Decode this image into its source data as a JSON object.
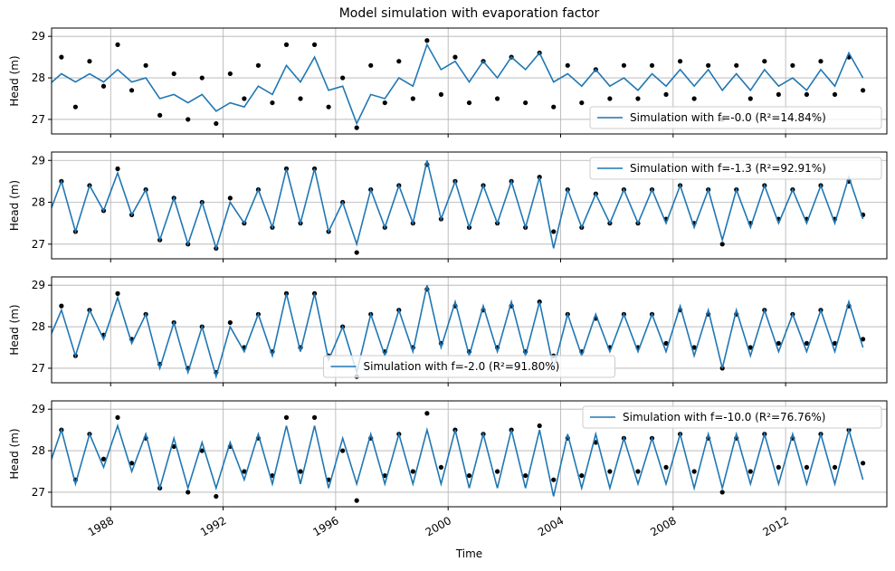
{
  "chart_data": [
    {
      "type": "line",
      "title": "Model simulation with evaporation factor",
      "ylabel": "Head (m)",
      "legend": "lower right",
      "grid": true,
      "xlim": [
        1985.9,
        2015.6
      ],
      "ylim": [
        26.65,
        29.2
      ],
      "yticks": [
        27,
        28,
        29
      ],
      "x": [
        1985.75,
        1986.25,
        1986.75,
        1987.25,
        1987.75,
        1988.25,
        1988.75,
        1989.25,
        1989.75,
        1990.25,
        1990.75,
        1991.25,
        1991.75,
        1992.25,
        1992.75,
        1993.25,
        1993.75,
        1994.25,
        1994.75,
        1995.25,
        1995.75,
        1996.25,
        1996.75,
        1997.25,
        1997.75,
        1998.25,
        1998.75,
        1999.25,
        1999.75,
        2000.25,
        2000.75,
        2001.25,
        2001.75,
        2002.25,
        2002.75,
        2003.25,
        2003.75,
        2004.25,
        2004.75,
        2005.25,
        2005.75,
        2006.25,
        2006.75,
        2007.25,
        2007.75,
        2008.25,
        2008.75,
        2009.25,
        2009.75,
        2010.25,
        2010.75,
        2011.25,
        2011.75,
        2012.25,
        2012.75,
        2013.25,
        2013.75,
        2014.25,
        2014.75
      ],
      "observations": {
        "color": "#000000",
        "values": [
          27.6,
          28.5,
          27.3,
          28.4,
          27.8,
          28.8,
          27.7,
          28.3,
          27.1,
          28.1,
          27.0,
          28.0,
          26.9,
          28.1,
          27.5,
          28.3,
          27.4,
          28.8,
          27.5,
          28.8,
          27.3,
          28.0,
          26.8,
          28.3,
          27.4,
          28.4,
          27.5,
          28.9,
          27.6,
          28.5,
          27.4,
          28.4,
          27.5,
          28.5,
          27.4,
          28.6,
          27.3,
          28.3,
          27.4,
          28.2,
          27.5,
          28.3,
          27.5,
          28.3,
          27.6,
          28.4,
          27.5,
          28.3,
          27.0,
          28.3,
          27.5,
          28.4,
          27.6,
          28.3,
          27.6,
          28.4,
          27.6,
          28.5,
          27.7
        ]
      },
      "series": [
        {
          "name": "Simulation with f=-0.0 (R²=14.84%)",
          "color": "#1f77b4",
          "values": [
            27.8,
            28.1,
            27.9,
            28.1,
            27.9,
            28.2,
            27.9,
            28.0,
            27.5,
            27.6,
            27.4,
            27.6,
            27.2,
            27.4,
            27.3,
            27.8,
            27.6,
            28.3,
            27.9,
            28.5,
            27.7,
            27.8,
            26.9,
            27.6,
            27.5,
            28.0,
            27.8,
            28.8,
            28.2,
            28.4,
            27.9,
            28.4,
            28.0,
            28.5,
            28.2,
            28.6,
            27.9,
            28.1,
            27.8,
            28.2,
            27.8,
            28.0,
            27.7,
            28.1,
            27.8,
            28.2,
            27.8,
            28.2,
            27.7,
            28.1,
            27.7,
            28.2,
            27.8,
            28.0,
            27.7,
            28.2,
            27.8,
            28.6,
            28.0
          ]
        }
      ]
    },
    {
      "type": "line",
      "ylabel": "Head (m)",
      "legend": "upper right",
      "grid": true,
      "xlim": [
        1985.9,
        2015.6
      ],
      "ylim": [
        26.65,
        29.2
      ],
      "yticks": [
        27,
        28,
        29
      ],
      "x": [
        1985.75,
        1986.25,
        1986.75,
        1987.25,
        1987.75,
        1988.25,
        1988.75,
        1989.25,
        1989.75,
        1990.25,
        1990.75,
        1991.25,
        1991.75,
        1992.25,
        1992.75,
        1993.25,
        1993.75,
        1994.25,
        1994.75,
        1995.25,
        1995.75,
        1996.25,
        1996.75,
        1997.25,
        1997.75,
        1998.25,
        1998.75,
        1999.25,
        1999.75,
        2000.25,
        2000.75,
        2001.25,
        2001.75,
        2002.25,
        2002.75,
        2003.25,
        2003.75,
        2004.25,
        2004.75,
        2005.25,
        2005.75,
        2006.25,
        2006.75,
        2007.25,
        2007.75,
        2008.25,
        2008.75,
        2009.25,
        2009.75,
        2010.25,
        2010.75,
        2011.25,
        2011.75,
        2012.25,
        2012.75,
        2013.25,
        2013.75,
        2014.25,
        2014.75
      ],
      "observations": {
        "color": "#000000",
        "values": [
          27.6,
          28.5,
          27.3,
          28.4,
          27.8,
          28.8,
          27.7,
          28.3,
          27.1,
          28.1,
          27.0,
          28.0,
          26.9,
          28.1,
          27.5,
          28.3,
          27.4,
          28.8,
          27.5,
          28.8,
          27.3,
          28.0,
          26.8,
          28.3,
          27.4,
          28.4,
          27.5,
          28.9,
          27.6,
          28.5,
          27.4,
          28.4,
          27.5,
          28.5,
          27.4,
          28.6,
          27.3,
          28.3,
          27.4,
          28.2,
          27.5,
          28.3,
          27.5,
          28.3,
          27.6,
          28.4,
          27.5,
          28.3,
          27.0,
          28.3,
          27.5,
          28.4,
          27.6,
          28.3,
          27.6,
          28.4,
          27.6,
          28.5,
          27.7
        ]
      },
      "series": [
        {
          "name": "Simulation with f=-1.3 (R²=92.91%)",
          "color": "#1f77b4",
          "values": [
            27.6,
            28.5,
            27.3,
            28.4,
            27.8,
            28.7,
            27.7,
            28.3,
            27.1,
            28.1,
            27.0,
            28.0,
            26.9,
            28.0,
            27.5,
            28.3,
            27.4,
            28.8,
            27.5,
            28.8,
            27.3,
            28.0,
            27.0,
            28.3,
            27.4,
            28.4,
            27.5,
            29.0,
            27.6,
            28.5,
            27.4,
            28.4,
            27.5,
            28.5,
            27.4,
            28.6,
            26.9,
            28.3,
            27.4,
            28.2,
            27.5,
            28.3,
            27.5,
            28.3,
            27.5,
            28.4,
            27.4,
            28.3,
            27.1,
            28.3,
            27.4,
            28.4,
            27.5,
            28.3,
            27.5,
            28.4,
            27.5,
            28.6,
            27.6
          ]
        }
      ]
    },
    {
      "type": "line",
      "ylabel": "Head (m)",
      "legend": "lower center",
      "grid": true,
      "xlim": [
        1985.9,
        2015.6
      ],
      "ylim": [
        26.65,
        29.2
      ],
      "yticks": [
        27,
        28,
        29
      ],
      "x": [
        1985.75,
        1986.25,
        1986.75,
        1987.25,
        1987.75,
        1988.25,
        1988.75,
        1989.25,
        1989.75,
        1990.25,
        1990.75,
        1991.25,
        1991.75,
        1992.25,
        1992.75,
        1993.25,
        1993.75,
        1994.25,
        1994.75,
        1995.25,
        1995.75,
        1996.25,
        1996.75,
        1997.25,
        1997.75,
        1998.25,
        1998.75,
        1999.25,
        1999.75,
        2000.25,
        2000.75,
        2001.25,
        2001.75,
        2002.25,
        2002.75,
        2003.25,
        2003.75,
        2004.25,
        2004.75,
        2005.25,
        2005.75,
        2006.25,
        2006.75,
        2007.25,
        2007.75,
        2008.25,
        2008.75,
        2009.25,
        2009.75,
        2010.25,
        2010.75,
        2011.25,
        2011.75,
        2012.25,
        2012.75,
        2013.25,
        2013.75,
        2014.25,
        2014.75
      ],
      "observations": {
        "color": "#000000",
        "values": [
          27.6,
          28.5,
          27.3,
          28.4,
          27.8,
          28.8,
          27.7,
          28.3,
          27.1,
          28.1,
          27.0,
          28.0,
          26.9,
          28.1,
          27.5,
          28.3,
          27.4,
          28.8,
          27.5,
          28.8,
          27.3,
          28.0,
          26.8,
          28.3,
          27.4,
          28.4,
          27.5,
          28.9,
          27.6,
          28.5,
          27.4,
          28.4,
          27.5,
          28.5,
          27.4,
          28.6,
          27.3,
          28.3,
          27.4,
          28.2,
          27.5,
          28.3,
          27.5,
          28.3,
          27.6,
          28.4,
          27.5,
          28.3,
          27.0,
          28.3,
          27.5,
          28.4,
          27.6,
          28.3,
          27.6,
          28.4,
          27.6,
          28.5,
          27.7
        ]
      },
      "series": [
        {
          "name": "Simulation with f=-2.0 (R²=91.80%)",
          "color": "#1f77b4",
          "values": [
            27.6,
            28.4,
            27.3,
            28.4,
            27.7,
            28.7,
            27.6,
            28.3,
            27.0,
            28.1,
            26.9,
            28.0,
            26.8,
            28.0,
            27.4,
            28.3,
            27.3,
            28.8,
            27.4,
            28.8,
            27.2,
            28.0,
            26.9,
            28.3,
            27.3,
            28.4,
            27.4,
            29.0,
            27.5,
            28.6,
            27.3,
            28.5,
            27.4,
            28.6,
            27.3,
            28.6,
            27.0,
            28.3,
            27.3,
            28.3,
            27.4,
            28.3,
            27.4,
            28.3,
            27.4,
            28.5,
            27.3,
            28.4,
            27.0,
            28.4,
            27.3,
            28.4,
            27.4,
            28.3,
            27.4,
            28.4,
            27.4,
            28.6,
            27.5
          ]
        }
      ]
    },
    {
      "type": "line",
      "ylabel": "Head (m)",
      "xlabel": "Time",
      "legend": "upper right",
      "grid": true,
      "xlim": [
        1985.9,
        2015.6
      ],
      "ylim": [
        26.65,
        29.2
      ],
      "yticks": [
        27,
        28,
        29
      ],
      "xticks": [
        1988,
        1992,
        1996,
        2000,
        2004,
        2008,
        2012
      ],
      "x": [
        1985.75,
        1986.25,
        1986.75,
        1987.25,
        1987.75,
        1988.25,
        1988.75,
        1989.25,
        1989.75,
        1990.25,
        1990.75,
        1991.25,
        1991.75,
        1992.25,
        1992.75,
        1993.25,
        1993.75,
        1994.25,
        1994.75,
        1995.25,
        1995.75,
        1996.25,
        1996.75,
        1997.25,
        1997.75,
        1998.25,
        1998.75,
        1999.25,
        1999.75,
        2000.25,
        2000.75,
        2001.25,
        2001.75,
        2002.25,
        2002.75,
        2003.25,
        2003.75,
        2004.25,
        2004.75,
        2005.25,
        2005.75,
        2006.25,
        2006.75,
        2007.25,
        2007.75,
        2008.25,
        2008.75,
        2009.25,
        2009.75,
        2010.25,
        2010.75,
        2011.25,
        2011.75,
        2012.25,
        2012.75,
        2013.25,
        2013.75,
        2014.25,
        2014.75
      ],
      "observations": {
        "color": "#000000",
        "values": [
          27.6,
          28.5,
          27.3,
          28.4,
          27.8,
          28.8,
          27.7,
          28.3,
          27.1,
          28.1,
          27.0,
          28.0,
          26.9,
          28.1,
          27.5,
          28.3,
          27.4,
          28.8,
          27.5,
          28.8,
          27.3,
          28.0,
          26.8,
          28.3,
          27.4,
          28.4,
          27.5,
          28.9,
          27.6,
          28.5,
          27.4,
          28.4,
          27.5,
          28.5,
          27.4,
          28.6,
          27.3,
          28.3,
          27.4,
          28.2,
          27.5,
          28.3,
          27.5,
          28.3,
          27.6,
          28.4,
          27.5,
          28.3,
          27.0,
          28.3,
          27.5,
          28.4,
          27.6,
          28.3,
          27.6,
          28.4,
          27.6,
          28.5,
          27.7
        ]
      },
      "series": [
        {
          "name": "Simulation with f=-10.0 (R²=76.76%)",
          "color": "#1f77b4",
          "values": [
            27.5,
            28.5,
            27.2,
            28.4,
            27.6,
            28.6,
            27.5,
            28.4,
            27.1,
            28.3,
            27.1,
            28.2,
            27.1,
            28.2,
            27.3,
            28.4,
            27.2,
            28.6,
            27.2,
            28.6,
            27.1,
            28.3,
            27.2,
            28.4,
            27.2,
            28.4,
            27.2,
            28.5,
            27.2,
            28.5,
            27.1,
            28.4,
            27.1,
            28.5,
            27.1,
            28.5,
            26.9,
            28.4,
            27.1,
            28.4,
            27.1,
            28.3,
            27.2,
            28.3,
            27.2,
            28.4,
            27.1,
            28.4,
            27.1,
            28.4,
            27.2,
            28.4,
            27.2,
            28.4,
            27.2,
            28.4,
            27.2,
            28.5,
            27.3
          ]
        }
      ]
    }
  ]
}
